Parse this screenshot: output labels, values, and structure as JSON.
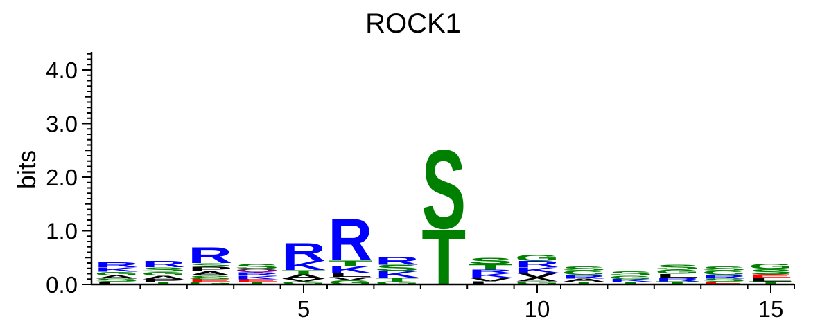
{
  "chart_data": {
    "type": "sequence-logo",
    "title": "ROCK1",
    "ylabel": "bits",
    "xlabel": "",
    "ylim": [
      0,
      4.3
    ],
    "xlim": [
      0.5,
      15.5
    ],
    "y_ticks": [
      "0.0",
      "1.0",
      "2.0",
      "3.0",
      "4.0"
    ],
    "x_ticks": [
      "5",
      "10",
      "15"
    ],
    "colors": {
      "basic": "#0000ff",
      "polar": "#008000",
      "hydrophobic": "#000000",
      "acidic": "#ff0000",
      "other": "#800080"
    },
    "positions": [
      {
        "pos": 1,
        "letters": [
          {
            "ch": "L",
            "bits": 0.05,
            "color": "#000000"
          },
          {
            "ch": "S",
            "bits": 0.06,
            "color": "#008000"
          },
          {
            "ch": "A",
            "bits": 0.06,
            "color": "#000000"
          },
          {
            "ch": "G",
            "bits": 0.07,
            "color": "#008000"
          },
          {
            "ch": "K",
            "bits": 0.08,
            "color": "#0000ff"
          },
          {
            "ch": "R",
            "bits": 0.09,
            "color": "#0000ff"
          }
        ]
      },
      {
        "pos": 2,
        "letters": [
          {
            "ch": "T",
            "bits": 0.05,
            "color": "#008000"
          },
          {
            "ch": "P",
            "bits": 0.05,
            "color": "#000000"
          },
          {
            "ch": "A",
            "bits": 0.07,
            "color": "#000000"
          },
          {
            "ch": "G",
            "bits": 0.07,
            "color": "#008000"
          },
          {
            "ch": "S",
            "bits": 0.08,
            "color": "#008000"
          },
          {
            "ch": "R",
            "bits": 0.12,
            "color": "#0000ff"
          }
        ]
      },
      {
        "pos": 3,
        "letters": [
          {
            "ch": "G",
            "bits": 0.05,
            "color": "#008000"
          },
          {
            "ch": "E",
            "bits": 0.05,
            "color": "#ff0000"
          },
          {
            "ch": "S",
            "bits": 0.07,
            "color": "#008000"
          },
          {
            "ch": "A",
            "bits": 0.08,
            "color": "#000000"
          },
          {
            "ch": "P",
            "bits": 0.08,
            "color": "#000000"
          },
          {
            "ch": "S",
            "bits": 0.07,
            "color": "#008000"
          },
          {
            "ch": "R",
            "bits": 0.3,
            "color": "#0000ff"
          }
        ]
      },
      {
        "pos": 4,
        "letters": [
          {
            "ch": "T",
            "bits": 0.05,
            "color": "#008000"
          },
          {
            "ch": "E",
            "bits": 0.05,
            "color": "#ff0000"
          },
          {
            "ch": "K",
            "bits": 0.06,
            "color": "#0000ff"
          },
          {
            "ch": "R",
            "bits": 0.07,
            "color": "#0000ff"
          },
          {
            "ch": "Q",
            "bits": 0.06,
            "color": "#800080"
          },
          {
            "ch": "S",
            "bits": 0.09,
            "color": "#008000"
          }
        ]
      },
      {
        "pos": 5,
        "letters": [
          {
            "ch": "G",
            "bits": 0.06,
            "color": "#008000"
          },
          {
            "ch": "V",
            "bits": 0.05,
            "color": "#000000"
          },
          {
            "ch": "A",
            "bits": 0.08,
            "color": "#000000"
          },
          {
            "ch": "T",
            "bits": 0.08,
            "color": "#008000"
          },
          {
            "ch": "K",
            "bits": 0.17,
            "color": "#0000ff"
          },
          {
            "ch": "R",
            "bits": 0.34,
            "color": "#0000ff"
          }
        ]
      },
      {
        "pos": 6,
        "letters": [
          {
            "ch": "G",
            "bits": 0.08,
            "color": "#008000"
          },
          {
            "ch": "V",
            "bits": 0.06,
            "color": "#000000"
          },
          {
            "ch": "L",
            "bits": 0.07,
            "color": "#000000"
          },
          {
            "ch": "K",
            "bits": 0.14,
            "color": "#0000ff"
          },
          {
            "ch": "T",
            "bits": 0.1,
            "color": "#008000"
          },
          {
            "ch": "R",
            "bits": 0.8,
            "color": "#0000ff"
          }
        ]
      },
      {
        "pos": 7,
        "letters": [
          {
            "ch": "G",
            "bits": 0.06,
            "color": "#008000"
          },
          {
            "ch": "T",
            "bits": 0.07,
            "color": "#008000"
          },
          {
            "ch": "K",
            "bits": 0.12,
            "color": "#0000ff"
          },
          {
            "ch": "S",
            "bits": 0.12,
            "color": "#008000"
          },
          {
            "ch": "R",
            "bits": 0.15,
            "color": "#0000ff"
          }
        ]
      },
      {
        "pos": 8,
        "letters": [
          {
            "ch": "T",
            "bits": 1.05,
            "color": "#008000"
          },
          {
            "ch": "S",
            "bits": 1.5,
            "color": "#008000"
          }
        ]
      },
      {
        "pos": 9,
        "letters": [
          {
            "ch": "L",
            "bits": 0.06,
            "color": "#000000"
          },
          {
            "ch": "V",
            "bits": 0.07,
            "color": "#000000"
          },
          {
            "ch": "K",
            "bits": 0.08,
            "color": "#0000ff"
          },
          {
            "ch": "R",
            "bits": 0.07,
            "color": "#0000ff"
          },
          {
            "ch": "T",
            "bits": 0.1,
            "color": "#008000"
          },
          {
            "ch": "S",
            "bits": 0.12,
            "color": "#008000"
          }
        ]
      },
      {
        "pos": 10,
        "letters": [
          {
            "ch": "G",
            "bits": 0.06,
            "color": "#008000"
          },
          {
            "ch": "A",
            "bits": 0.07,
            "color": "#000000"
          },
          {
            "ch": "V",
            "bits": 0.09,
            "color": "#000000"
          },
          {
            "ch": "K",
            "bits": 0.1,
            "color": "#0000ff"
          },
          {
            "ch": "R",
            "bits": 0.12,
            "color": "#0000ff"
          },
          {
            "ch": "G",
            "bits": 0.12,
            "color": "#008000"
          }
        ]
      },
      {
        "pos": 11,
        "letters": [
          {
            "ch": "T",
            "bits": 0.05,
            "color": "#008000"
          },
          {
            "ch": "A",
            "bits": 0.06,
            "color": "#000000"
          },
          {
            "ch": "R",
            "bits": 0.07,
            "color": "#0000ff"
          },
          {
            "ch": "G",
            "bits": 0.08,
            "color": "#008000"
          },
          {
            "ch": "S",
            "bits": 0.08,
            "color": "#008000"
          }
        ]
      },
      {
        "pos": 12,
        "letters": [
          {
            "ch": "T",
            "bits": 0.05,
            "color": "#008000"
          },
          {
            "ch": "K",
            "bits": 0.05,
            "color": "#0000ff"
          },
          {
            "ch": "G",
            "bits": 0.07,
            "color": "#008000"
          },
          {
            "ch": "S",
            "bits": 0.08,
            "color": "#008000"
          }
        ]
      },
      {
        "pos": 13,
        "letters": [
          {
            "ch": "T",
            "bits": 0.06,
            "color": "#008000"
          },
          {
            "ch": "R",
            "bits": 0.07,
            "color": "#0000ff"
          },
          {
            "ch": "L",
            "bits": 0.07,
            "color": "#000000"
          },
          {
            "ch": "G",
            "bits": 0.08,
            "color": "#008000"
          },
          {
            "ch": "S",
            "bits": 0.09,
            "color": "#008000"
          }
        ]
      },
      {
        "pos": 14,
        "letters": [
          {
            "ch": "E",
            "bits": 0.05,
            "color": "#ff0000"
          },
          {
            "ch": "S",
            "bits": 0.06,
            "color": "#008000"
          },
          {
            "ch": "R",
            "bits": 0.07,
            "color": "#0000ff"
          },
          {
            "ch": "G",
            "bits": 0.08,
            "color": "#008000"
          },
          {
            "ch": "S",
            "bits": 0.08,
            "color": "#008000"
          }
        ]
      },
      {
        "pos": 15,
        "letters": [
          {
            "ch": "T",
            "bits": 0.06,
            "color": "#008000"
          },
          {
            "ch": "L",
            "bits": 0.07,
            "color": "#000000"
          },
          {
            "ch": "E",
            "bits": 0.06,
            "color": "#ff0000"
          },
          {
            "ch": "S",
            "bits": 0.1,
            "color": "#008000"
          },
          {
            "ch": "G",
            "bits": 0.1,
            "color": "#008000"
          }
        ]
      }
    ]
  }
}
